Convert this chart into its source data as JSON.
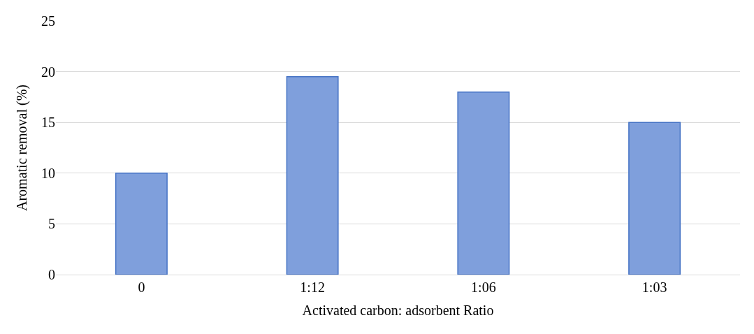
{
  "chart_data": {
    "type": "bar",
    "xlabel": "Activated carbon: adsorbent Ratio",
    "ylabel": "Aromatic removal (%)",
    "categories": [
      "0",
      "1:12",
      "1:06",
      "1:03"
    ],
    "values": [
      10,
      19.5,
      18,
      15
    ],
    "color": "#7f9fdc",
    "ylim": [
      0,
      25
    ],
    "yticks": [
      0,
      5,
      10,
      15,
      20,
      25
    ],
    "grid": "y"
  }
}
